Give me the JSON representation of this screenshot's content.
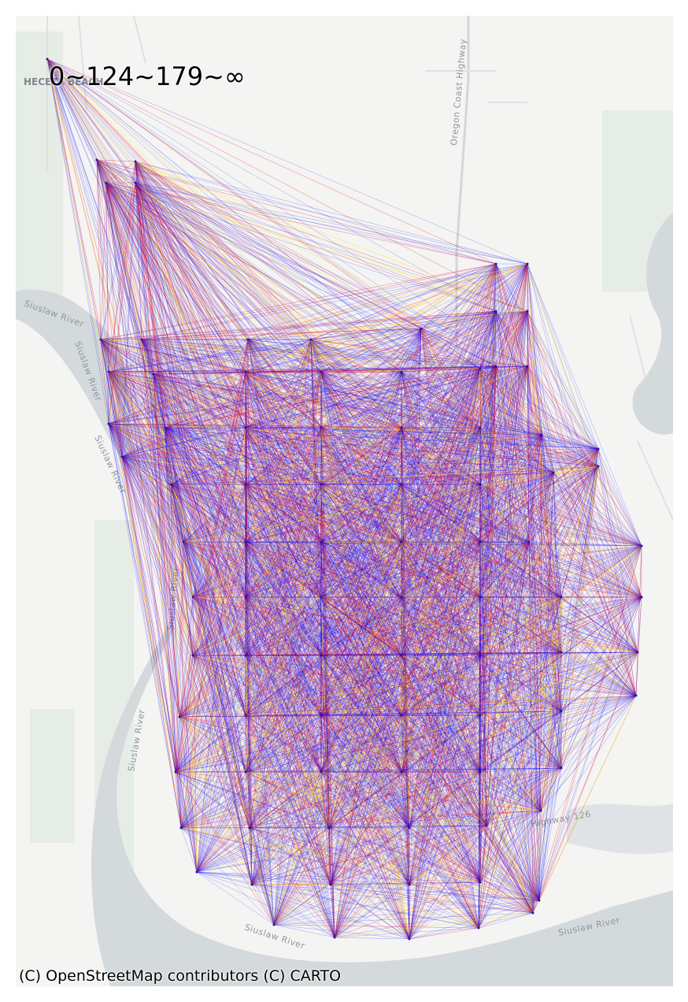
{
  "map": {
    "title": "0~124~179~∞",
    "attribution": "(C) OpenStreetMap contributors (C) CARTO",
    "basemap_labels": {
      "river_1": "Siuslaw River",
      "river_2": "Siuslaw River",
      "river_3": "Siuslaw River",
      "river_4": "Siuslaw River",
      "river_5": "Siuslaw River",
      "river_6": "Siuslaw River",
      "river_7": "Siuslaw River",
      "highway_1": "Oregon Coast Highway",
      "highway_2": "Highway 126",
      "place": "HECETA BEACH"
    },
    "colors": {
      "water": "#d4d9dc",
      "land": "#f4f4f2",
      "park": "#e4ebe4",
      "road": "#dcdcdc",
      "edge_short": "#0000ff",
      "edge_mid": "#e0002a",
      "edge_long": "#ffd700"
    },
    "edge_classes": [
      "0~124",
      "124~179",
      "179~∞"
    ]
  }
}
